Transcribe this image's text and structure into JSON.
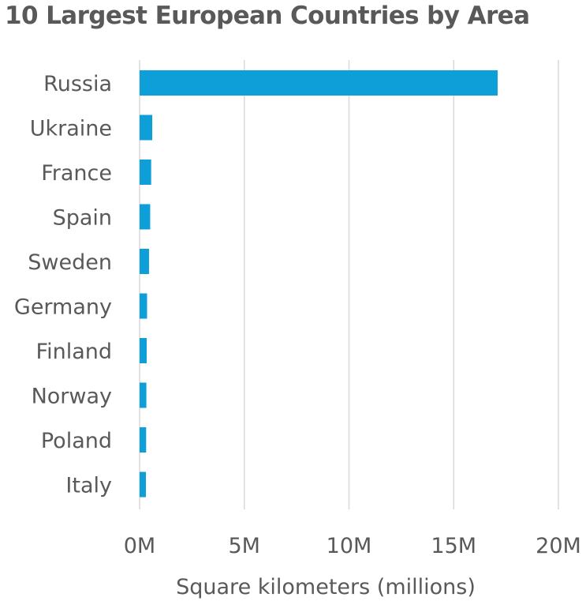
{
  "chart_data": {
    "type": "bar",
    "orientation": "horizontal",
    "title": "10 Largest European Countries by Area",
    "xlabel": "Square kilometers (millions)",
    "ylabel": "",
    "categories": [
      "Russia",
      "Ukraine",
      "France",
      "Spain",
      "Sweden",
      "Germany",
      "Finland",
      "Norway",
      "Poland",
      "Italy"
    ],
    "values": [
      17098242,
      603550,
      551695,
      505990,
      450295,
      357022,
      338424,
      323802,
      312696,
      301340
    ],
    "xlim": [
      0,
      20000000
    ],
    "x_ticks": [
      0,
      5000000,
      10000000,
      15000000,
      20000000
    ],
    "x_tick_labels": [
      "0M",
      "5M",
      "10M",
      "15M",
      "20M"
    ],
    "bar_color": "#0E9FD8",
    "grid": "vertical",
    "legend": "none"
  }
}
